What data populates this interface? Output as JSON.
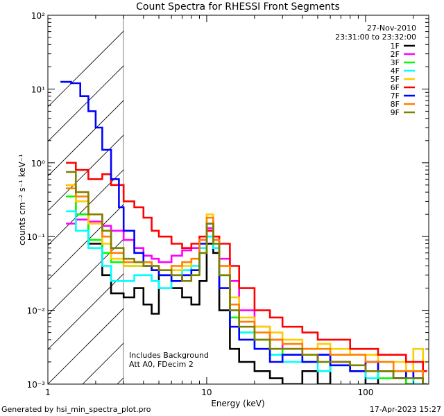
{
  "chart_data": {
    "type": "line",
    "title": "Count Spectra for RHESSI Front Segments",
    "xlabel": "Energy (keV)",
    "ylabel": "counts cm⁻² s⁻¹ keV⁻¹",
    "x_scale": "log",
    "y_scale": "log",
    "xlim": [
      1,
      250
    ],
    "ylim": [
      0.001,
      100
    ],
    "x_tick_labels": [
      "1",
      "10",
      "100"
    ],
    "y_tick_labels": [
      "10⁻³",
      "10⁻²",
      "10⁻¹",
      "10⁰",
      "10¹",
      "10²"
    ],
    "date": "27-Nov-2010",
    "time_range": "23:31:00 to 23:32:00",
    "notes": [
      "Includes Background",
      "Att A0, FDecim 2"
    ],
    "hatched_region_upper_kev": 3.0,
    "series": [
      {
        "name": "1F",
        "color": "#000000",
        "x": [
          1.3,
          1.5,
          1.8,
          2.2,
          2.5,
          3,
          3.5,
          4,
          4.5,
          5,
          6,
          7,
          8,
          9,
          10,
          11,
          12,
          14,
          16,
          20,
          25,
          30,
          40,
          50,
          60,
          80,
          100,
          120,
          150,
          180,
          200,
          230
        ],
        "values": [
          0.5,
          0.2,
          0.08,
          0.03,
          0.017,
          0.015,
          0.02,
          0.012,
          0.009,
          0.03,
          0.02,
          0.015,
          0.012,
          0.025,
          0.08,
          0.06,
          0.01,
          0.003,
          0.002,
          0.0015,
          0.0012,
          0.001,
          0.0015,
          0.001,
          0.002,
          0.0015,
          0.001,
          0.0015,
          0.0012,
          0.001,
          0.0015,
          0.001
        ]
      },
      {
        "name": "2F",
        "color": "#ff00ff",
        "x": [
          1.3,
          1.5,
          1.8,
          2.2,
          2.5,
          3,
          3.5,
          4,
          4.5,
          5,
          6,
          7,
          8,
          9,
          10,
          11,
          12,
          14,
          16,
          20,
          25,
          30,
          40,
          50,
          60,
          80,
          100,
          120,
          150,
          180,
          200,
          230
        ],
        "values": [
          0.15,
          0.17,
          0.16,
          0.14,
          0.12,
          0.09,
          0.07,
          0.055,
          0.05,
          0.045,
          0.055,
          0.065,
          0.07,
          0.09,
          0.13,
          0.09,
          0.05,
          0.025,
          0.01,
          0.006,
          0.004,
          0.003,
          0.002,
          0.0025,
          0.002,
          0.0015,
          0.002,
          0.0015,
          0.0015,
          0.0012,
          0.0015,
          0.001
        ]
      },
      {
        "name": "3F",
        "color": "#00ff00",
        "x": [
          1.3,
          1.5,
          1.8,
          2.2,
          2.5,
          3,
          3.5,
          4,
          4.5,
          5,
          6,
          7,
          8,
          9,
          10,
          11,
          12,
          14,
          16,
          20,
          25,
          30,
          40,
          50,
          60,
          80,
          100,
          120,
          150,
          180,
          200,
          230
        ],
        "values": [
          0.35,
          0.2,
          0.09,
          0.06,
          0.045,
          0.04,
          0.04,
          0.045,
          0.035,
          0.03,
          0.025,
          0.03,
          0.035,
          0.06,
          0.1,
          0.08,
          0.03,
          0.008,
          0.005,
          0.004,
          0.003,
          0.0025,
          0.002,
          0.002,
          0.0018,
          0.0015,
          0.0015,
          0.0012,
          0.0015,
          0.001,
          0.0012,
          0.001
        ]
      },
      {
        "name": "4F",
        "color": "#00ffff",
        "x": [
          1.3,
          1.5,
          1.8,
          2.2,
          2.5,
          3,
          3.5,
          4,
          4.5,
          5,
          6,
          7,
          8,
          9,
          10,
          11,
          12,
          14,
          16,
          20,
          25,
          30,
          40,
          50,
          60,
          80,
          100,
          120,
          150,
          180,
          200,
          230
        ],
        "values": [
          0.22,
          0.12,
          0.07,
          0.04,
          0.025,
          0.025,
          0.03,
          0.03,
          0.025,
          0.02,
          0.03,
          0.035,
          0.04,
          0.07,
          0.1,
          0.07,
          0.03,
          0.01,
          0.005,
          0.003,
          0.0025,
          0.002,
          0.002,
          0.0015,
          0.0018,
          0.0015,
          0.0012,
          0.0015,
          0.0012,
          0.0012,
          0.001,
          0.001
        ]
      },
      {
        "name": "5F",
        "color": "#ffcc00",
        "x": [
          1.3,
          1.5,
          1.8,
          2.2,
          2.5,
          3,
          3.5,
          4,
          4.5,
          5,
          6,
          7,
          8,
          9,
          10,
          11,
          12,
          14,
          16,
          20,
          25,
          30,
          40,
          50,
          60,
          80,
          100,
          120,
          150,
          180,
          200,
          230
        ],
        "values": [
          0.5,
          0.3,
          0.15,
          0.08,
          0.05,
          0.04,
          0.04,
          0.04,
          0.035,
          0.03,
          0.035,
          0.04,
          0.05,
          0.08,
          0.2,
          0.1,
          0.04,
          0.015,
          0.008,
          0.006,
          0.005,
          0.004,
          0.003,
          0.0035,
          0.003,
          0.0025,
          0.0025,
          0.002,
          0.002,
          0.0015,
          0.003,
          0.002
        ]
      },
      {
        "name": "6F",
        "color": "#ff0000",
        "x": [
          1.3,
          1.5,
          1.8,
          2.2,
          2.5,
          3,
          3.5,
          4,
          4.5,
          5,
          6,
          7,
          8,
          9,
          10,
          11,
          12,
          14,
          16,
          20,
          25,
          30,
          40,
          50,
          60,
          80,
          100,
          120,
          150,
          180,
          200,
          230
        ],
        "values": [
          1.0,
          0.8,
          0.6,
          0.7,
          0.5,
          0.3,
          0.25,
          0.18,
          0.12,
          0.1,
          0.08,
          0.07,
          0.08,
          0.1,
          0.12,
          0.1,
          0.08,
          0.04,
          0.02,
          0.01,
          0.008,
          0.006,
          0.005,
          0.004,
          0.004,
          0.003,
          0.003,
          0.0025,
          0.0025,
          0.002,
          0.002,
          0.0015
        ]
      },
      {
        "name": "7F",
        "color": "#0000ff",
        "x": [
          1.2,
          1.4,
          1.6,
          1.8,
          2.0,
          2.2,
          2.5,
          2.8,
          3,
          3.5,
          4,
          4.5,
          5,
          6,
          7,
          8,
          9,
          10,
          11,
          12,
          14,
          16,
          20,
          25,
          30,
          40,
          50,
          60,
          80,
          100,
          120,
          150,
          180,
          200,
          230
        ],
        "values": [
          12.5,
          12,
          8,
          5,
          3,
          1.5,
          0.6,
          0.25,
          0.12,
          0.06,
          0.04,
          0.035,
          0.03,
          0.025,
          0.03,
          0.035,
          0.08,
          0.15,
          0.09,
          0.02,
          0.006,
          0.004,
          0.003,
          0.002,
          0.0025,
          0.002,
          0.0025,
          0.0018,
          0.0015,
          0.002,
          0.0015,
          0.0012,
          0.0015,
          0.0012,
          0.001
        ]
      },
      {
        "name": "8F",
        "color": "#ff8000",
        "x": [
          1.3,
          1.5,
          1.8,
          2.2,
          2.5,
          3,
          3.5,
          4,
          4.5,
          5,
          6,
          7,
          8,
          9,
          10,
          11,
          12,
          14,
          16,
          20,
          25,
          30,
          40,
          50,
          60,
          80,
          100,
          120,
          150,
          180,
          200,
          230
        ],
        "values": [
          0.45,
          0.35,
          0.2,
          0.1,
          0.06,
          0.045,
          0.045,
          0.045,
          0.04,
          0.035,
          0.04,
          0.045,
          0.05,
          0.09,
          0.18,
          0.09,
          0.04,
          0.012,
          0.007,
          0.005,
          0.004,
          0.0035,
          0.003,
          0.003,
          0.0025,
          0.0025,
          0.002,
          0.002,
          0.0015,
          0.0015,
          0.0015,
          0.001
        ]
      },
      {
        "name": "9F",
        "color": "#808000",
        "x": [
          1.3,
          1.5,
          1.8,
          2.2,
          2.5,
          3,
          3.5,
          4,
          4.5,
          5,
          6,
          7,
          8,
          9,
          10,
          11,
          12,
          14,
          16,
          20,
          25,
          30,
          40,
          50,
          60,
          80,
          100,
          120,
          150,
          180,
          200,
          230
        ],
        "values": [
          0.75,
          0.4,
          0.2,
          0.12,
          0.07,
          0.05,
          0.045,
          0.04,
          0.04,
          0.035,
          0.03,
          0.025,
          0.03,
          0.06,
          0.15,
          0.08,
          0.03,
          0.01,
          0.006,
          0.004,
          0.003,
          0.003,
          0.0025,
          0.002,
          0.002,
          0.0018,
          0.0015,
          0.0015,
          0.0012,
          0.0012,
          0.0012,
          0.001
        ]
      }
    ]
  },
  "footer": {
    "left": "Generated by hsi_min_spectra_plot.pro",
    "right": "17-Apr-2023 15:27"
  }
}
